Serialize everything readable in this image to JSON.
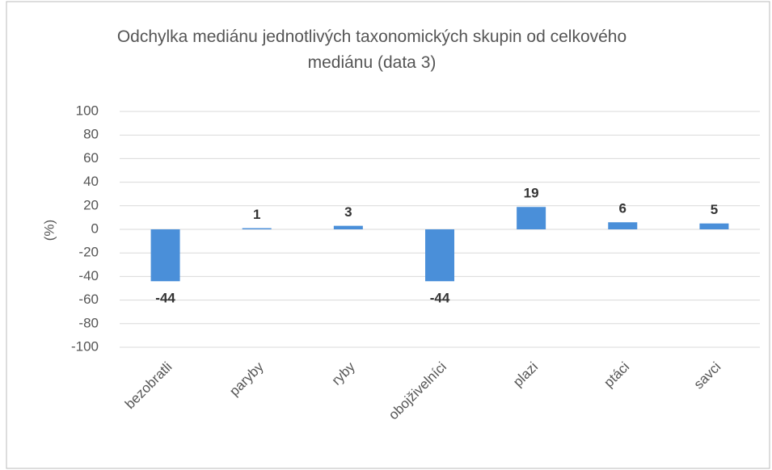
{
  "chart_data": {
    "type": "bar",
    "title": "Odchylka mediánu jednotlivých taxonomických skupin od celkového mediánu (data 3)",
    "y_label": "(%)",
    "categories": [
      "bezobratli",
      "paryby",
      "ryby",
      "obojživelníci",
      "plazi",
      "ptáci",
      "savci"
    ],
    "values": [
      -44,
      1,
      3,
      -44,
      19,
      6,
      5
    ],
    "color": "#4a8fd9",
    "ylim": [
      -100,
      100
    ],
    "yticks": [
      -100,
      -80,
      -60,
      -40,
      -20,
      0,
      20,
      40,
      60,
      80,
      100
    ],
    "grid": true
  }
}
